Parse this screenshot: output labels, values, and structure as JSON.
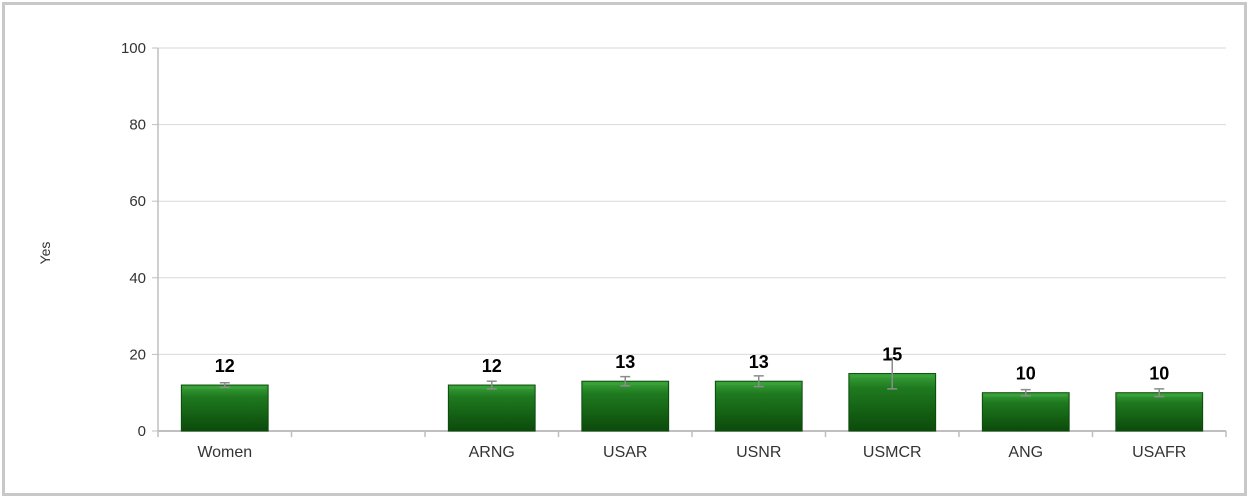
{
  "chart_data": {
    "type": "bar",
    "ylabel": "Yes",
    "ylim": [
      0,
      100
    ],
    "yticks": [
      0,
      20,
      40,
      60,
      80,
      100
    ],
    "categories": [
      "Women",
      "",
      "ARNG",
      "USAR",
      "USNR",
      "USMCR",
      "ANG",
      "USAFR"
    ],
    "values": [
      12,
      null,
      12,
      13,
      13,
      15,
      10,
      10
    ],
    "value_labels": [
      "12",
      "",
      "12",
      "13",
      "13",
      "15",
      "10",
      "10"
    ],
    "error_bars": [
      [
        11.4,
        12.6
      ],
      null,
      [
        11.0,
        13.0
      ],
      [
        11.8,
        14.2
      ],
      [
        11.6,
        14.4
      ],
      [
        11.0,
        19.0
      ],
      [
        9.2,
        10.8
      ],
      [
        9.0,
        11.0
      ]
    ],
    "grid": true,
    "legend": "none",
    "colors": {
      "bar": "#1f7a1f",
      "bar_dark": "#0b4a0b",
      "bar_light": "#3aa33a",
      "grid": "#d9d9d9",
      "axis": "#bfbfbf",
      "error_bar": "#8c8c8c"
    }
  }
}
